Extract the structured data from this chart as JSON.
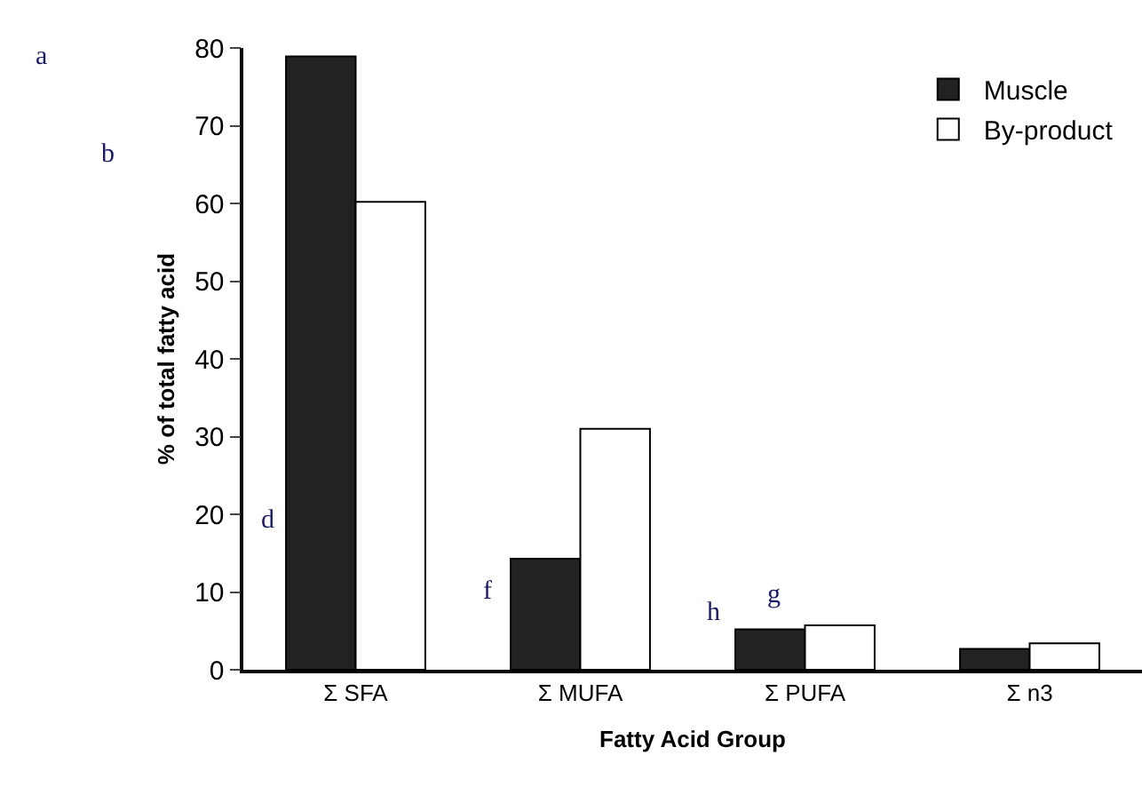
{
  "chart_data": {
    "type": "bar",
    "xlabel": "Fatty Acid Group",
    "ylabel": "% of total fatty acid",
    "categories": [
      "Σ SFA",
      "Σ MUFA",
      "Σ PUFA",
      "Σ n3"
    ],
    "series": [
      {
        "name": "Muscle",
        "color": "#222222",
        "values": [
          78.9,
          14.3,
          5.2,
          2.7
        ]
      },
      {
        "name": "By-product",
        "color": "#ffffff",
        "values": [
          60.2,
          31.0,
          5.7,
          3.4
        ]
      }
    ],
    "ylim": [
      0,
      80
    ],
    "yticks": [
      0,
      10,
      20,
      30,
      40,
      50,
      60,
      70,
      80
    ],
    "legend": "top right",
    "annotations": [
      "a",
      "b",
      "d",
      "f",
      "h",
      "g"
    ]
  }
}
